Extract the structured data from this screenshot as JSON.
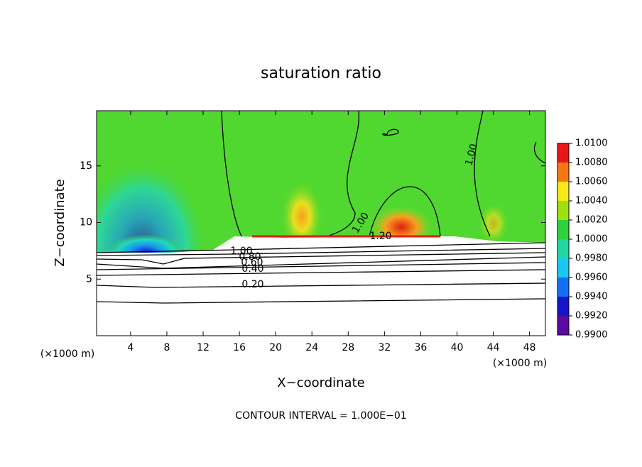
{
  "chart_data": {
    "type": "contour",
    "title": "saturation ratio",
    "x_label": "X−coordinate",
    "y_label": "Z−coordinate",
    "x_unit_left": "(×1000 m)",
    "x_unit_right": "(×1000 m)",
    "note": "CONTOUR INTERVAL = 1.000E−01",
    "xlim": [
      0.25,
      49.75
    ],
    "ylim": [
      0,
      19.875
    ],
    "xticks": [
      4,
      8,
      12,
      16,
      20,
      24,
      28,
      32,
      36,
      40,
      44,
      48
    ],
    "yticks": [
      5,
      10,
      15
    ],
    "colorbar_ticks": [
      {
        "value": 0.99,
        "label": "0.9900"
      },
      {
        "value": 0.992,
        "label": "0.9920"
      },
      {
        "value": 0.994,
        "label": "0.9940"
      },
      {
        "value": 0.996,
        "label": "0.9960"
      },
      {
        "value": 0.998,
        "label": "0.9980"
      },
      {
        "value": 1.0,
        "label": "1.0000"
      },
      {
        "value": 1.002,
        "label": "1.0020"
      },
      {
        "value": 1.004,
        "label": "1.0040"
      },
      {
        "value": 1.006,
        "label": "1.0060"
      },
      {
        "value": 1.008,
        "label": "1.0080"
      },
      {
        "value": 1.01,
        "label": "1.0100"
      }
    ],
    "colorbar_colors": [
      "#5a0aa0",
      "#1414c8",
      "#1470f0",
      "#18c8f0",
      "#20d8a0",
      "#30d040",
      "#a0e010",
      "#f8e818",
      "#f87810",
      "#e81818"
    ],
    "contour_labels": [
      "1.00",
      "1.00",
      "1.20",
      "1.00",
      "0.80",
      "0.60",
      "0.40",
      "0.20"
    ]
  }
}
